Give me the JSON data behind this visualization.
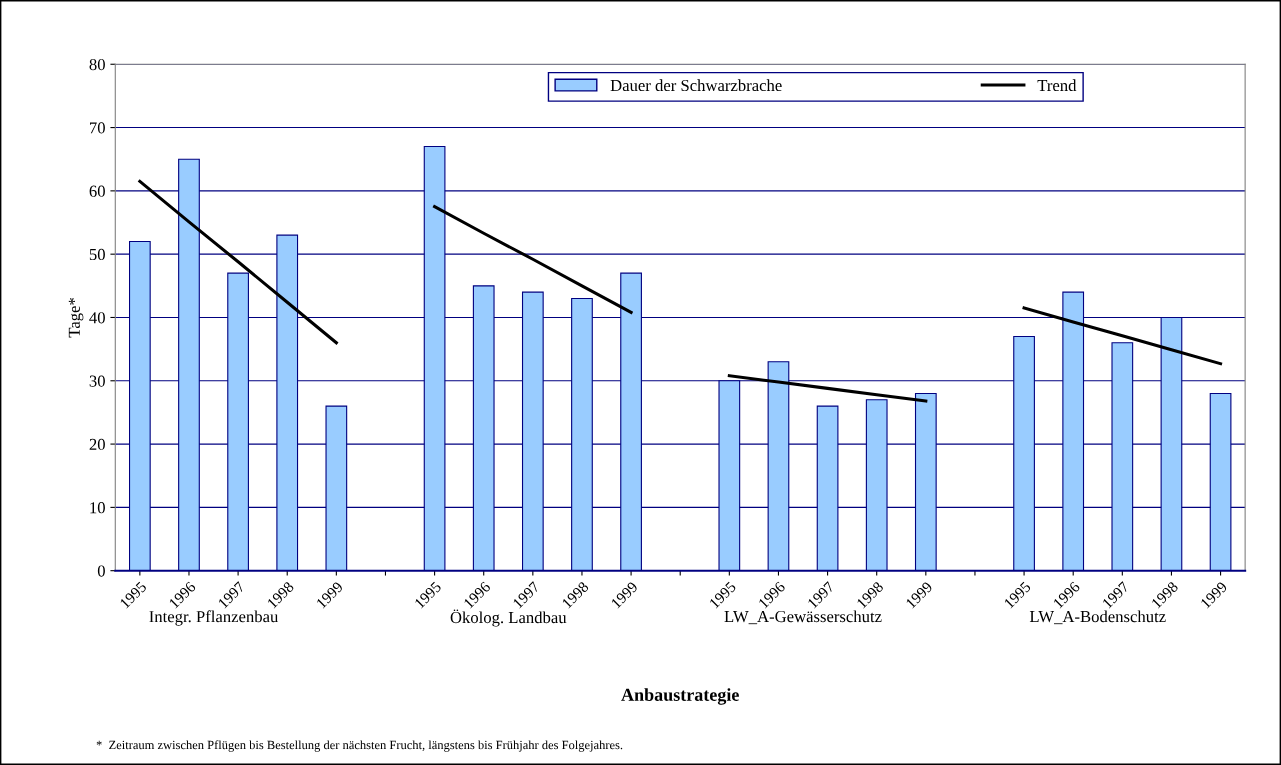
{
  "chart_data": {
    "type": "bar",
    "ylabel": "Tage*",
    "xlabel": "Anbaustrategie",
    "categories": [
      "1995",
      "1996",
      "1997",
      "1998",
      "1999",
      null,
      "1995",
      "1996",
      "1997",
      "1998",
      "1999",
      null,
      "1995",
      "1996",
      "1997",
      "1998",
      "1999",
      null,
      "1995",
      "1996",
      "1997",
      "1998",
      "1999"
    ],
    "series": [
      {
        "name": "Dauer der Schwarzbrache",
        "color": "#99ccff",
        "values": [
          52,
          65,
          47,
          53,
          26,
          null,
          67,
          45,
          44,
          43,
          47,
          null,
          30,
          33,
          26,
          27,
          28,
          null,
          37,
          44,
          36,
          40,
          28
        ]
      },
      {
        "name": "Trend",
        "type": "line",
        "color": "#000000",
        "values": [
          61.5,
          55.1,
          48.8,
          42.4,
          36.0,
          null,
          57.5,
          53.3,
          49.2,
          45.0,
          40.8,
          null,
          30.8,
          29.8,
          28.8,
          27.8,
          26.8,
          null,
          41.5,
          39.3,
          37.1,
          34.9,
          32.7
        ]
      }
    ],
    "ylim": [
      0,
      80
    ],
    "yticks": [
      0,
      10,
      20,
      30,
      40,
      50,
      60,
      70,
      80
    ],
    "grid": "y",
    "legend": "top",
    "marker": "none",
    "line_style": "solid",
    "annotations": [
      "Integr. Pflanzenbau",
      "Ökolog. Landbau",
      "LW_A-Gewässerschutz",
      "LW_A-Bodenschutz",
      "*  Zeitraum zwischen Pflügen bis Bestellung der nächsten Frucht, längstens bis Frühjahr des Folgejahres."
    ]
  }
}
